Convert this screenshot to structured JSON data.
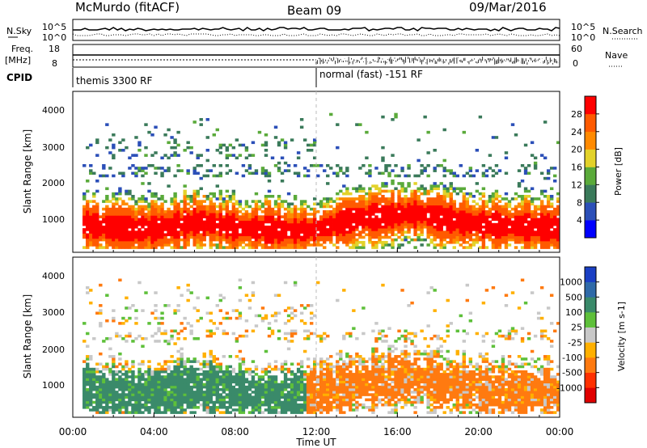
{
  "header": {
    "station": "McMurdo (fitACF)",
    "beam": "Beam 09",
    "date": "09/Mar/2016"
  },
  "noise_panel": {
    "left_label": "N.Sky",
    "right_label": "N.Search",
    "y_ticks": [
      "10^5",
      "10^0"
    ],
    "right_ticks": [
      "10^5",
      "10^0"
    ]
  },
  "freq_panel": {
    "left_label_1": "Freq.",
    "left_label_2": "[MHz]",
    "right_label": "Nave",
    "left_ticks": [
      "18",
      "8"
    ],
    "right_ticks": [
      "60",
      "0"
    ]
  },
  "cpid": {
    "label": "CPID",
    "segments": [
      {
        "text": "themis 3300 RF",
        "start_hour": 0
      },
      {
        "text": "normal (fast) -151 RF",
        "start_hour": 12
      }
    ]
  },
  "chart_data": [
    {
      "type": "heatmap",
      "name": "power",
      "ylabel": "Slant Range [km]",
      "y_ticks": [
        "4000",
        "3000",
        "2000",
        "1000"
      ],
      "ylim": [
        200,
        4600
      ],
      "xlim": [
        0,
        24
      ],
      "colorbar_label": "Power [dB]",
      "colorbar_ticks": [
        "28",
        "24",
        "20",
        "16",
        "12",
        "8",
        "4"
      ],
      "colors": [
        "#0000ff",
        "#2b4fb8",
        "#3a7a5a",
        "#5aaa3a",
        "#e3d22a",
        "#ff8a00",
        "#ff5a00",
        "#ff0000"
      ],
      "series": [
        {
          "x_start": 0.5,
          "x_end": 24,
          "range_center": [
            1000,
            900,
            850,
            800,
            800,
            900,
            1000,
            950,
            850,
            800,
            800,
            750,
            800,
            950,
            1100,
            1150,
            1200,
            1250,
            1100,
            1000,
            950,
            900,
            900,
            850,
            850
          ]
        }
      ]
    },
    {
      "type": "heatmap",
      "name": "velocity",
      "ylabel": "Slant Range [km]",
      "y_ticks": [
        "4000",
        "3000",
        "2000",
        "1000"
      ],
      "ylim": [
        200,
        4600
      ],
      "xlim": [
        0,
        24
      ],
      "colorbar_label": "Velocity [m s-1]",
      "colorbar_ticks": [
        "1000",
        "500",
        "100",
        "25",
        "-25",
        "-100",
        "-500",
        "-1000"
      ],
      "colors": [
        "#1a3fc4",
        "#2f6aa8",
        "#3a8a6a",
        "#5ec03a",
        "#c8c8c8",
        "#ffb000",
        "#ff7a10",
        "#ff3000",
        "#e00000"
      ],
      "xlabel": "Time UT",
      "x_ticks": [
        "00:00",
        "04:00",
        "08:00",
        "12:00",
        "16:00",
        "20:00",
        "00:00"
      ]
    }
  ]
}
